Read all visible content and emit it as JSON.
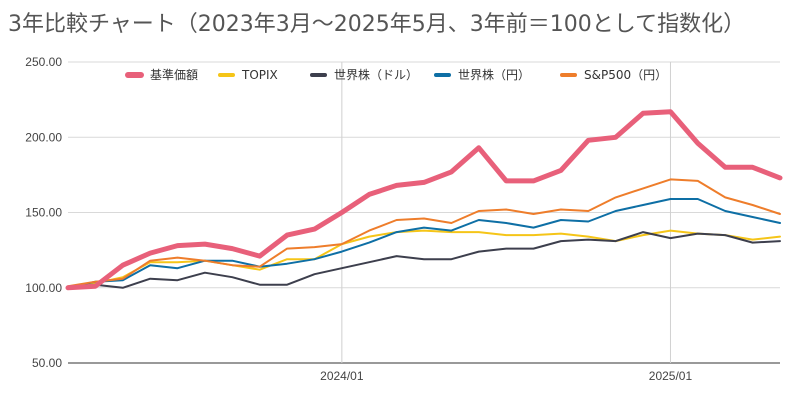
{
  "chart_data": {
    "type": "line",
    "title": "3年比較チャート（2023年3月～2025年5月、3年前＝100として指数化）",
    "x": [
      "2023/03",
      "2023/04",
      "2023/05",
      "2023/06",
      "2023/07",
      "2023/08",
      "2023/09",
      "2023/10",
      "2023/11",
      "2023/12",
      "2024/01",
      "2024/02",
      "2024/03",
      "2024/04",
      "2024/05",
      "2024/06",
      "2024/07",
      "2024/08",
      "2024/09",
      "2024/10",
      "2024/11",
      "2024/12",
      "2025/01",
      "2025/02",
      "2025/03",
      "2025/04",
      "2025/05"
    ],
    "x_tick_labels": [
      {
        "label": "2024/01",
        "x": "2024/01"
      },
      {
        "label": "2025/01",
        "x": "2025/01"
      }
    ],
    "ylim": [
      50,
      250
    ],
    "y_ticks": [
      "50.00",
      "100.00",
      "150.00",
      "200.00",
      "250.00"
    ],
    "grid": {
      "horizontal": true,
      "vertical_at_ticks": true
    },
    "legend_position": "top",
    "series": [
      {
        "name": "基準価額",
        "color": "#e8607a",
        "width": 5,
        "values": [
          100,
          101,
          115,
          123,
          128,
          129,
          126,
          121,
          135,
          139,
          150,
          162,
          168,
          170,
          177,
          193,
          171,
          171,
          178,
          198,
          200,
          216,
          217,
          196,
          180,
          180,
          173
        ]
      },
      {
        "name": "TOPIX",
        "color": "#f5c518",
        "width": 2,
        "values": [
          100,
          103,
          107,
          117,
          117,
          118,
          115,
          112,
          119,
          119,
          129,
          134,
          137,
          138,
          137,
          137,
          135,
          135,
          136,
          134,
          131,
          135,
          138,
          136,
          135,
          132,
          134
        ]
      },
      {
        "name": "世界株（ドル）",
        "color": "#3d3f4d",
        "width": 2,
        "values": [
          100,
          102,
          100,
          106,
          105,
          110,
          107,
          102,
          102,
          109,
          113,
          117,
          121,
          119,
          119,
          124,
          126,
          126,
          131,
          132,
          131,
          137,
          133,
          136,
          135,
          130,
          131
        ]
      },
      {
        "name": "世界株（円）",
        "color": "#0e6fa5",
        "width": 2,
        "values": [
          100,
          104,
          105,
          115,
          113,
          118,
          118,
          114,
          116,
          119,
          124,
          130,
          137,
          140,
          138,
          145,
          143,
          140,
          145,
          144,
          151,
          155,
          159,
          159,
          151,
          147,
          143
        ]
      },
      {
        "name": "S&P500（円）",
        "color": "#ee7d2b",
        "width": 2,
        "values": [
          101,
          104,
          106,
          118,
          120,
          118,
          115,
          114,
          126,
          127,
          129,
          138,
          145,
          146,
          143,
          151,
          152,
          149,
          152,
          151,
          160,
          166,
          172,
          171,
          160,
          155,
          149
        ]
      }
    ]
  }
}
